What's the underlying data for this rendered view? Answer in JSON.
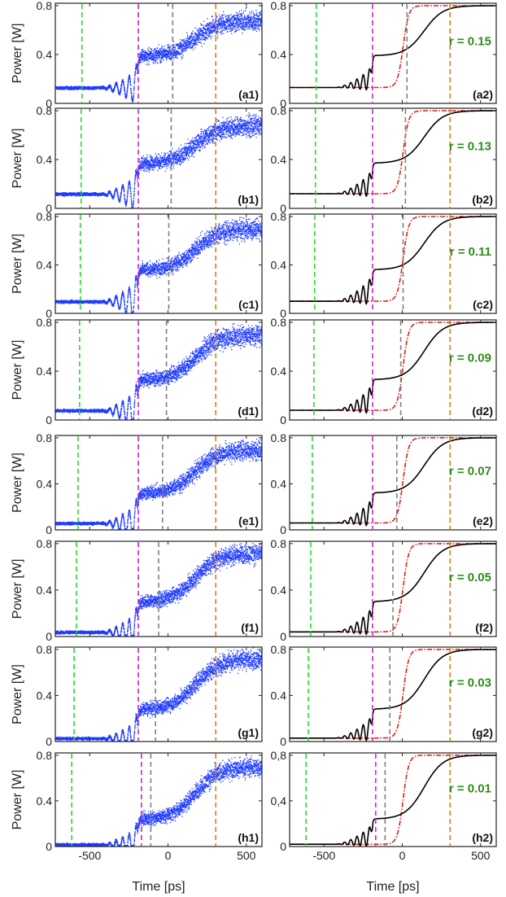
{
  "colors": {
    "experiment": "#1f3cff",
    "simulation": "#000000",
    "reference": "#e0201b",
    "green_line": "#22dd22",
    "magenta_line": "#cc22cc",
    "gray_line": "#808080",
    "orange_line": "#e07b10",
    "r_text": "#2e8b1a",
    "axis": "#222222"
  },
  "chart_data": {
    "type": "line",
    "xlabel": "Time [ps]",
    "ylabel": "Power [W]",
    "xlim": [
      -720,
      600
    ],
    "ylim": [
      0,
      0.82
    ],
    "xticks": [
      -500,
      0,
      500
    ],
    "xtick_labels": [
      "-500",
      "0",
      "500"
    ],
    "yticks": [
      0,
      0.4,
      0.8
    ],
    "ytick_labels": [
      "0",
      "0.4",
      "0.8"
    ],
    "ytick_labels_last_right": [
      "0",
      "0,4",
      "0,8"
    ],
    "grid": false,
    "rows": [
      {
        "left_label": "(a1)",
        "right_label": "(a2)",
        "r_text": "r = 0.15",
        "baseline": 0.13,
        "plateau": 0.39,
        "final": 0.68,
        "sim_final": 0.8,
        "osc_amp": 0.1,
        "markers": {
          "green": -550,
          "magenta": -190,
          "gray": 30,
          "orange": 305
        }
      },
      {
        "left_label": "(b1)",
        "right_label": "(b2)",
        "r_text": "r = 0.13",
        "baseline": 0.12,
        "plateau": 0.37,
        "final": 0.68,
        "sim_final": 0.8,
        "osc_amp": 0.11,
        "markers": {
          "green": -555,
          "magenta": -190,
          "gray": 20,
          "orange": 305
        }
      },
      {
        "left_label": "(c1)",
        "right_label": "(c2)",
        "r_text": "r = 0.11",
        "baseline": 0.1,
        "plateau": 0.36,
        "final": 0.7,
        "sim_final": 0.8,
        "osc_amp": 0.12,
        "markers": {
          "green": -560,
          "magenta": -190,
          "gray": 5,
          "orange": 305
        }
      },
      {
        "left_label": "(d1)",
        "right_label": "(d2)",
        "r_text": "r = 0.09",
        "baseline": 0.08,
        "plateau": 0.33,
        "final": 0.7,
        "sim_final": 0.8,
        "osc_amp": 0.12,
        "markers": {
          "green": -565,
          "magenta": -190,
          "gray": -10,
          "orange": 305
        }
      },
      {
        "left_label": "(e1)",
        "right_label": "(e2)",
        "r_text": "r = 0.07",
        "baseline": 0.06,
        "plateau": 0.32,
        "final": 0.7,
        "sim_final": 0.8,
        "osc_amp": 0.12,
        "markers": {
          "green": -575,
          "magenta": -190,
          "gray": -35,
          "orange": 305
        }
      },
      {
        "left_label": "(f1)",
        "right_label": "(f2)",
        "r_text": "r = 0.05",
        "baseline": 0.04,
        "plateau": 0.3,
        "final": 0.72,
        "sim_final": 0.8,
        "osc_amp": 0.12,
        "markers": {
          "green": -585,
          "magenta": -190,
          "gray": -60,
          "orange": 305
        }
      },
      {
        "left_label": "(g1)",
        "right_label": "(g2)",
        "r_text": "r = 0.03",
        "baseline": 0.03,
        "plateau": 0.28,
        "final": 0.72,
        "sim_final": 0.8,
        "osc_amp": 0.11,
        "markers": {
          "green": -600,
          "magenta": -190,
          "gray": -80,
          "orange": 305
        }
      },
      {
        "left_label": "(h1)",
        "right_label": "(h2)",
        "r_text": "r = 0.01",
        "baseline": 0.02,
        "plateau": 0.24,
        "final": 0.7,
        "sim_final": 0.8,
        "osc_amp": 0.1,
        "markers": {
          "green": -615,
          "magenta": -170,
          "gray": -110,
          "orange": 305
        }
      }
    ]
  }
}
